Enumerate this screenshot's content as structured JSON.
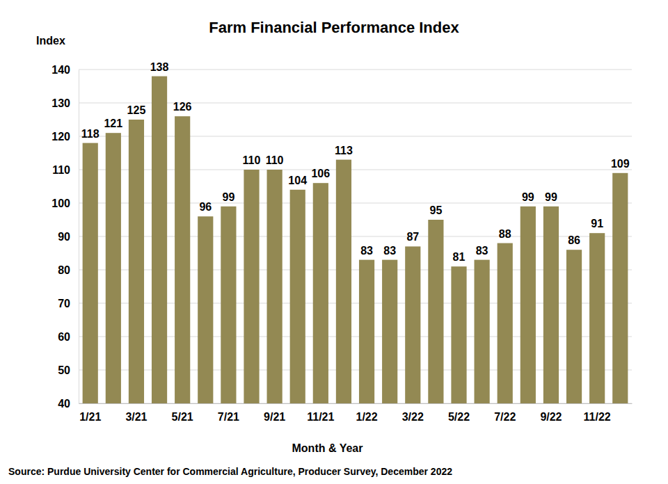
{
  "chart_data": {
    "type": "bar",
    "title": "Farm Financial Performance Index",
    "y_label": "Index",
    "x_label": "Month & Year",
    "source": "Source: Purdue University Center for Commercial Agriculture, Producer Survey, December 2022",
    "categories": [
      "1/21",
      null,
      "3/21",
      null,
      "5/21",
      null,
      "7/21",
      null,
      "9/21",
      null,
      "11/21",
      null,
      "1/22",
      null,
      "3/22",
      null,
      "5/22",
      null,
      "7/22",
      null,
      "9/22",
      null,
      "11/22",
      null
    ],
    "values": [
      118,
      121,
      125,
      138,
      126,
      96,
      99,
      110,
      110,
      104,
      106,
      113,
      83,
      83,
      87,
      95,
      81,
      83,
      88,
      99,
      99,
      86,
      91,
      109
    ],
    "color": "#938953",
    "ylim": [
      40,
      140
    ],
    "yticks": [
      40,
      50,
      60,
      70,
      80,
      90,
      100,
      110,
      120,
      130,
      140
    ],
    "grid": true,
    "data_labels": true
  }
}
